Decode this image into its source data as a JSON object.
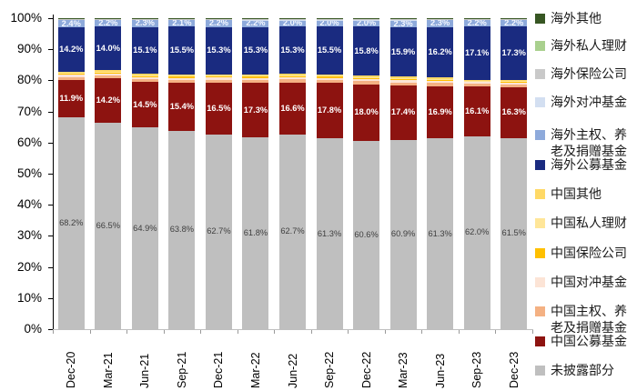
{
  "chart_data": {
    "type": "bar",
    "stacked": true,
    "percent_stacked": true,
    "title": "",
    "xlabel": "",
    "ylabel": "",
    "ylim": [
      0,
      100
    ],
    "y_ticks": [
      "100%",
      "90%",
      "80%",
      "70%",
      "60%",
      "50%",
      "40%",
      "30%",
      "20%",
      "10%",
      "0%"
    ],
    "legend_position": "right",
    "gridlines": false,
    "categories": [
      "Dec-20",
      "Mar-21",
      "Jun-21",
      "Sep-21",
      "Dec-21",
      "Mar-22",
      "Jun-22",
      "Sep-22",
      "Dec-22",
      "Mar-23",
      "Jun-23",
      "Sep-23",
      "Dec-23"
    ],
    "series_bottom_to_top": [
      {
        "name": "未披露部分",
        "color": "#bfbfbf",
        "label_color": "#3f3f3f",
        "label_bold": false,
        "show_labels": true,
        "values": [
          68.2,
          66.5,
          64.9,
          63.8,
          62.7,
          61.8,
          62.7,
          61.3,
          60.6,
          60.9,
          61.3,
          62.0,
          61.5
        ]
      },
      {
        "name": "中国公募基金",
        "color": "#8d1310",
        "label_color": "#ffffff",
        "label_bold": true,
        "show_labels": true,
        "values": [
          11.9,
          14.2,
          14.5,
          15.4,
          16.5,
          17.3,
          16.6,
          17.8,
          18.0,
          17.4,
          16.9,
          16.1,
          16.3
        ]
      },
      {
        "name": "中国主权、养老及捐赠基金",
        "color": "#f4b183",
        "show_labels": false,
        "estimated": true,
        "values": [
          0.99,
          0.93,
          0.96,
          0.96,
          0.99,
          1.02,
          1.02,
          1.02,
          1.08,
          1.05,
          0.99,
          0.78,
          0.81
        ]
      },
      {
        "name": "中国对冲基金",
        "color": "#fce4d6",
        "show_labels": false,
        "estimated": true,
        "values": [
          0.66,
          0.62,
          0.64,
          0.64,
          0.66,
          0.68,
          0.68,
          0.68,
          0.72,
          0.7,
          0.66,
          0.52,
          0.54
        ]
      },
      {
        "name": "中国保险公司",
        "color": "#ffc000",
        "show_labels": false,
        "estimated": true,
        "values": [
          0.4,
          0.37,
          0.38,
          0.38,
          0.4,
          0.41,
          0.41,
          0.41,
          0.43,
          0.42,
          0.4,
          0.31,
          0.32
        ]
      },
      {
        "name": "中国私人理财",
        "color": "#ffe699",
        "show_labels": false,
        "estimated": true,
        "values": [
          0.26,
          0.25,
          0.26,
          0.26,
          0.26,
          0.27,
          0.27,
          0.27,
          0.29,
          0.28,
          0.26,
          0.21,
          0.22
        ]
      },
      {
        "name": "中国其他",
        "color": "#ffd966",
        "show_labels": false,
        "estimated": true,
        "values": [
          0.4,
          0.37,
          0.38,
          0.38,
          0.4,
          0.41,
          0.41,
          0.41,
          0.43,
          0.42,
          0.4,
          0.31,
          0.32
        ]
      },
      {
        "name": "海外公募基金",
        "color": "#1a2b80",
        "label_color": "#ffffff",
        "label_bold": true,
        "show_labels": true,
        "values": [
          14.2,
          14.0,
          15.1,
          15.5,
          15.3,
          15.3,
          15.3,
          15.5,
          15.8,
          15.9,
          16.2,
          17.1,
          17.3
        ]
      },
      {
        "name": "海外主权、养老及捐赠基金",
        "color": "#8eaadb",
        "label_color": "#f5f8ff",
        "label_bold": true,
        "show_labels": true,
        "values": [
          2.4,
          2.2,
          2.3,
          2.1,
          2.2,
          2.2,
          2.0,
          2.0,
          2.0,
          2.3,
          2.3,
          2.2,
          2.2
        ]
      },
      {
        "name": "海外对冲基金",
        "color": "#d3dff1",
        "show_labels": false,
        "estimated": true,
        "values": [
          0.17,
          0.16,
          0.16,
          0.16,
          0.17,
          0.17,
          0.17,
          0.17,
          0.18,
          0.18,
          0.17,
          0.13,
          0.14
        ]
      },
      {
        "name": "海外保险公司",
        "color": "#c9c9c9",
        "show_labels": false,
        "estimated": true,
        "values": [
          0.2,
          0.19,
          0.19,
          0.19,
          0.2,
          0.2,
          0.2,
          0.2,
          0.22,
          0.21,
          0.2,
          0.16,
          0.16
        ]
      },
      {
        "name": "海外私人理财",
        "color": "#a9d08e",
        "show_labels": false,
        "estimated": true,
        "values": [
          0.13,
          0.12,
          0.13,
          0.13,
          0.13,
          0.14,
          0.14,
          0.14,
          0.14,
          0.14,
          0.13,
          0.1,
          0.11
        ]
      },
      {
        "name": "海外其他",
        "color": "#375623",
        "show_labels": false,
        "estimated": true,
        "values": [
          0.1,
          0.09,
          0.1,
          0.1,
          0.1,
          0.1,
          0.1,
          0.1,
          0.11,
          0.11,
          0.1,
          0.08,
          0.08
        ]
      }
    ]
  }
}
